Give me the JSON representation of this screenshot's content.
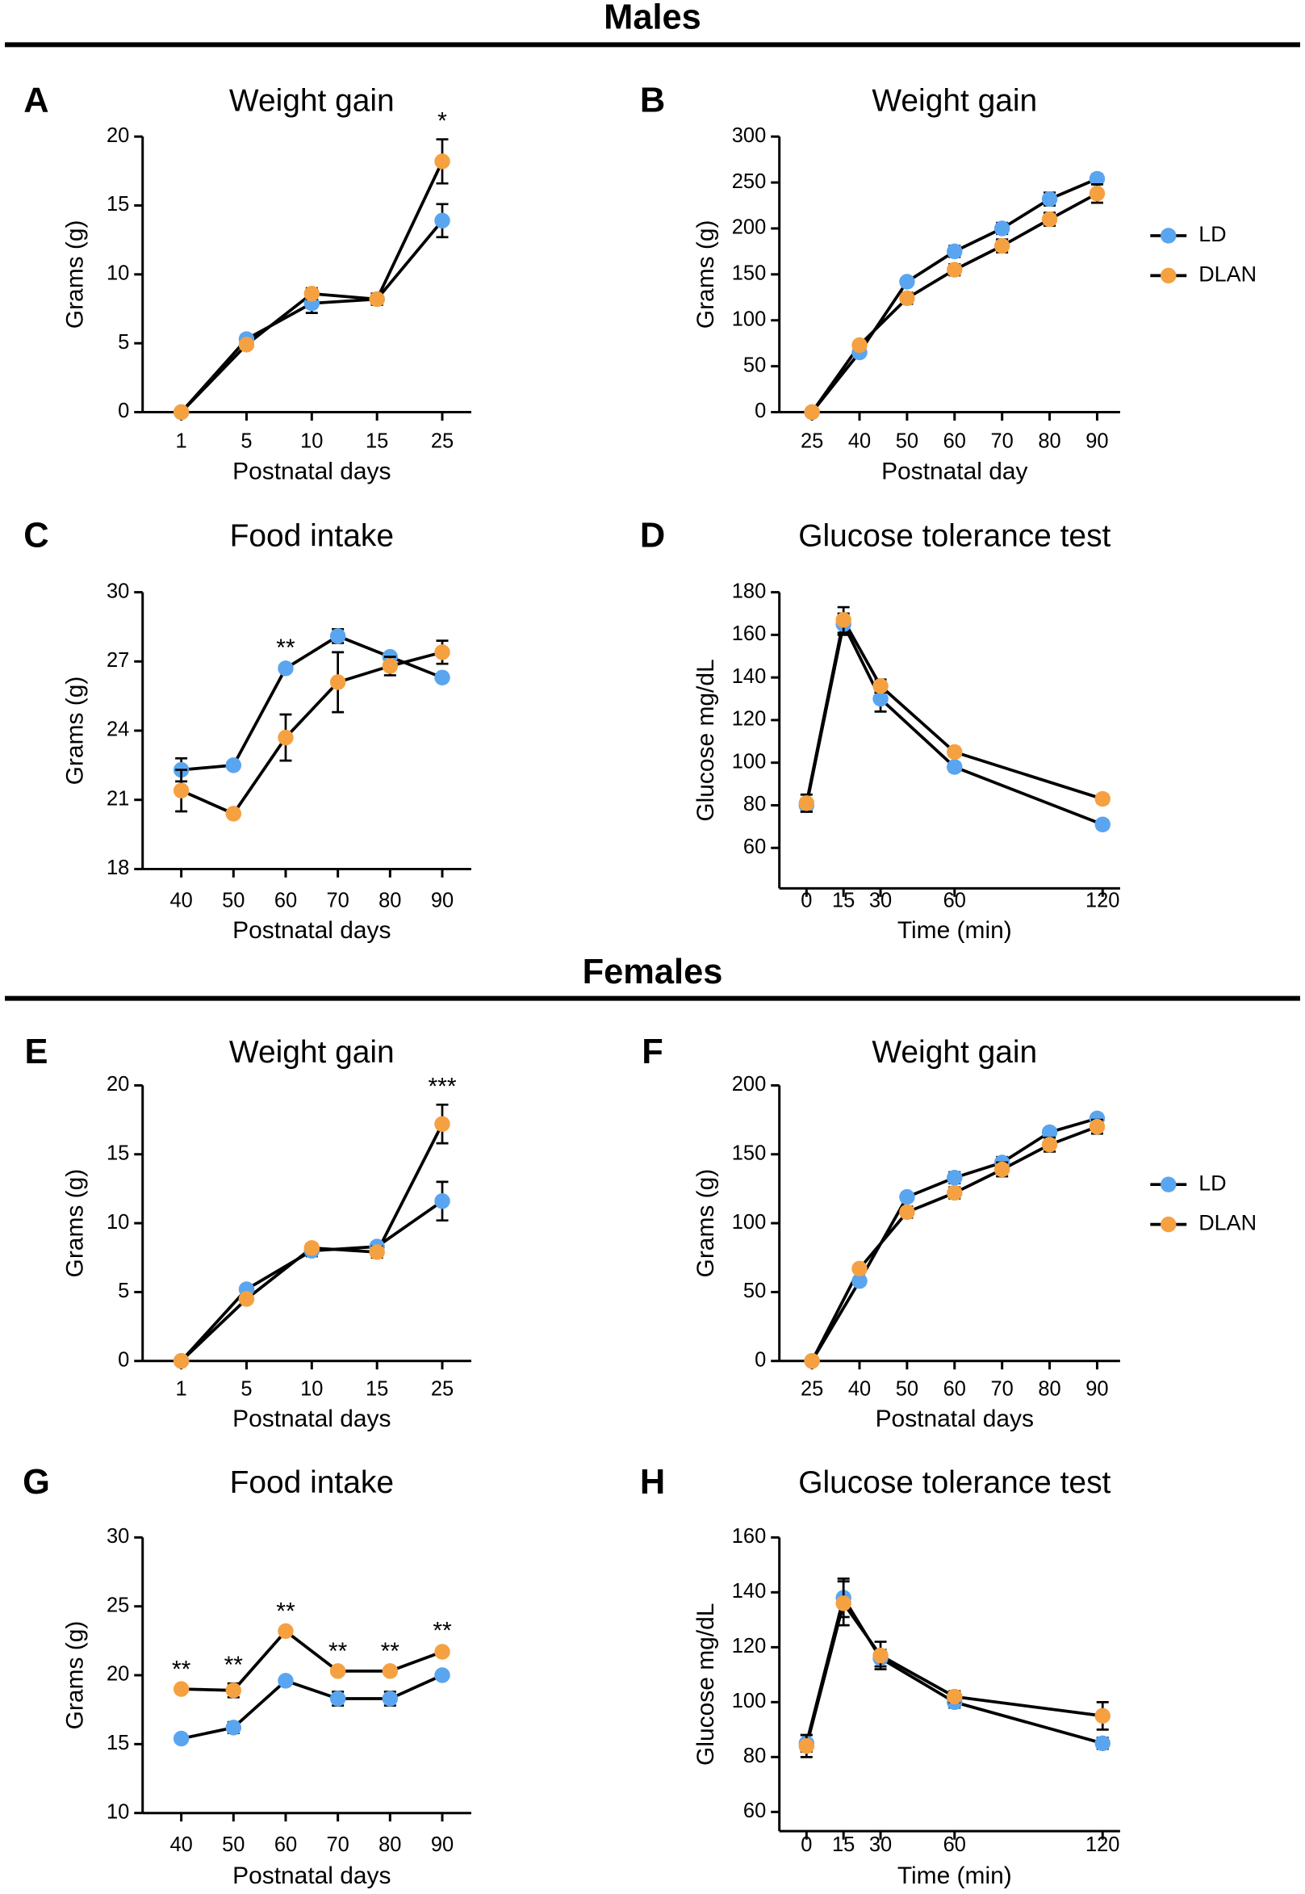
{
  "sections": [
    "Males",
    "Females"
  ],
  "chart_data": [
    {
      "type": "line",
      "label": "A",
      "title": "Weight gain",
      "xlabel": "Postnatal days",
      "ylabel": "Grams (g)",
      "categories": [
        "1",
        "5",
        "10",
        "15",
        "25"
      ],
      "ylim": [
        0,
        20
      ],
      "yticks": [
        0,
        5,
        10,
        15,
        20
      ],
      "series": [
        {
          "color": "#5aa5f0",
          "values": [
            0,
            5.3,
            7.9,
            8.2,
            13.9
          ],
          "errors": [
            0,
            0.3,
            0.7,
            0.4,
            1.2
          ]
        },
        {
          "color": "#f5a142",
          "values": [
            0,
            4.9,
            8.6,
            8.2,
            18.2
          ],
          "errors": [
            0,
            0.3,
            0.4,
            0.4,
            1.6
          ]
        }
      ],
      "annotations": [
        {
          "x": "25",
          "text": "*"
        }
      ]
    },
    {
      "type": "line",
      "label": "B",
      "title": "Weight gain",
      "xlabel": "Postnatal day",
      "ylabel": "Grams (g)",
      "categories": [
        "25",
        "40",
        "50",
        "60",
        "70",
        "80",
        "90"
      ],
      "ylim": [
        0,
        300
      ],
      "yticks": [
        0,
        50,
        100,
        150,
        200,
        250,
        300
      ],
      "legend": "right",
      "series": [
        {
          "name": "LD",
          "color": "#5aa5f0",
          "values": [
            0,
            65,
            142,
            175,
            200,
            232,
            254
          ],
          "errors": [
            0,
            4,
            4,
            6,
            6,
            7,
            5
          ]
        },
        {
          "name": "DLAN",
          "color": "#f5a142",
          "values": [
            0,
            73,
            124,
            155,
            181,
            210,
            238
          ],
          "errors": [
            0,
            4,
            6,
            6,
            7,
            7,
            10
          ]
        }
      ]
    },
    {
      "type": "line",
      "label": "C",
      "title": "Food intake",
      "xlabel": "Postnatal days",
      "ylabel": "Grams (g)",
      "categories": [
        "40",
        "50",
        "60",
        "70",
        "80",
        "90"
      ],
      "ylim": [
        18,
        30
      ],
      "yticks": [
        18,
        21,
        24,
        27,
        30
      ],
      "series": [
        {
          "color": "#5aa5f0",
          "values": [
            22.3,
            22.5,
            26.7,
            28.1,
            27.2,
            26.3
          ],
          "errors": [
            0.5,
            0.1,
            0.1,
            0.3,
            0.1,
            0.1
          ]
        },
        {
          "color": "#f5a142",
          "values": [
            21.4,
            20.4,
            23.7,
            26.1,
            26.8,
            27.4
          ],
          "errors": [
            0.9,
            0.1,
            1.0,
            1.3,
            0.4,
            0.5
          ]
        }
      ],
      "annotations": [
        {
          "x": "60",
          "text": "**"
        }
      ]
    },
    {
      "type": "line",
      "label": "D",
      "title": "Glucose tolerance test",
      "xlabel": "Time (min)",
      "ylabel": "Glucose mg/dL",
      "x": [
        0,
        15,
        30,
        60,
        120
      ],
      "xlim": [
        -11,
        131
      ],
      "xticks": [
        0,
        15,
        30,
        60,
        120
      ],
      "ylim": [
        41,
        180
      ],
      "yticks": [
        60,
        80,
        100,
        120,
        140,
        160,
        180
      ],
      "series": [
        {
          "color": "#5aa5f0",
          "values": [
            80,
            165,
            130,
            98,
            71
          ],
          "errors": [
            3,
            5,
            6,
            2,
            2
          ]
        },
        {
          "color": "#f5a142",
          "values": [
            81,
            167,
            136,
            105,
            83
          ],
          "errors": [
            4,
            6,
            3,
            2,
            2
          ]
        }
      ]
    },
    {
      "type": "line",
      "label": "E",
      "title": "Weight gain",
      "xlabel": "Postnatal days",
      "ylabel": "Grams (g)",
      "categories": [
        "1",
        "5",
        "10",
        "15",
        "25"
      ],
      "ylim": [
        0,
        20
      ],
      "yticks": [
        0,
        5,
        10,
        15,
        20
      ],
      "series": [
        {
          "color": "#5aa5f0",
          "values": [
            0,
            5.2,
            8.0,
            8.3,
            11.6
          ],
          "errors": [
            0,
            0.2,
            0.4,
            0.3,
            1.4
          ]
        },
        {
          "color": "#f5a142",
          "values": [
            0,
            4.5,
            8.2,
            7.9,
            17.2
          ],
          "errors": [
            0,
            0.3,
            0.3,
            0.4,
            1.4
          ]
        }
      ],
      "annotations": [
        {
          "x": "25",
          "text": "***"
        }
      ]
    },
    {
      "type": "line",
      "label": "F",
      "title": "Weight gain",
      "xlabel": "Postnatal days",
      "ylabel": "Grams (g)",
      "categories": [
        "25",
        "40",
        "50",
        "60",
        "70",
        "80",
        "90"
      ],
      "ylim": [
        0,
        200
      ],
      "yticks": [
        0,
        50,
        100,
        150,
        200
      ],
      "legend": "right",
      "series": [
        {
          "name": "LD",
          "color": "#5aa5f0",
          "values": [
            0,
            58,
            119,
            133,
            144,
            166,
            176
          ],
          "errors": [
            0,
            3,
            3,
            4,
            4,
            3,
            3
          ]
        },
        {
          "name": "DLAN",
          "color": "#f5a142",
          "values": [
            0,
            67,
            108,
            122,
            139,
            157,
            170
          ],
          "errors": [
            0,
            3,
            4,
            4,
            5,
            5,
            5
          ]
        }
      ]
    },
    {
      "type": "line",
      "label": "G",
      "title": "Food intake",
      "xlabel": "Postnatal days",
      "ylabel": "Grams (g)",
      "categories": [
        "40",
        "50",
        "60",
        "70",
        "80",
        "90"
      ],
      "ylim": [
        10,
        30
      ],
      "yticks": [
        10,
        15,
        20,
        25,
        30
      ],
      "series": [
        {
          "color": "#5aa5f0",
          "values": [
            15.4,
            16.2,
            19.6,
            18.3,
            18.3,
            20.0
          ],
          "errors": [
            0.1,
            0.4,
            0.2,
            0.5,
            0.5,
            0.2
          ]
        },
        {
          "color": "#f5a142",
          "values": [
            19.0,
            18.9,
            23.2,
            20.3,
            20.3,
            21.7
          ],
          "errors": [
            0.1,
            0.5,
            0.1,
            0.1,
            0.1,
            0.2
          ]
        }
      ],
      "annotations": [
        {
          "x": "40",
          "text": "**"
        },
        {
          "x": "50",
          "text": "**"
        },
        {
          "x": "60",
          "text": "**"
        },
        {
          "x": "70",
          "text": "**"
        },
        {
          "x": "80",
          "text": "**"
        },
        {
          "x": "90",
          "text": "**"
        }
      ]
    },
    {
      "type": "line",
      "label": "H",
      "title": "Glucose tolerance test",
      "xlabel": "Time (min)",
      "ylabel": "Glucose mg/dL",
      "x": [
        0,
        15,
        30,
        60,
        120
      ],
      "xlim": [
        -11,
        131
      ],
      "xticks": [
        0,
        15,
        30,
        60,
        120
      ],
      "ylim": [
        53,
        160
      ],
      "yticks": [
        60,
        80,
        100,
        120,
        140,
        160
      ],
      "series": [
        {
          "color": "#5aa5f0",
          "values": [
            85,
            138,
            116,
            100,
            85
          ],
          "errors": [
            3,
            7,
            3,
            2,
            2
          ]
        },
        {
          "color": "#f5a142",
          "values": [
            84,
            136,
            117,
            102,
            95
          ],
          "errors": [
            4,
            8,
            5,
            2,
            5
          ]
        }
      ]
    }
  ]
}
